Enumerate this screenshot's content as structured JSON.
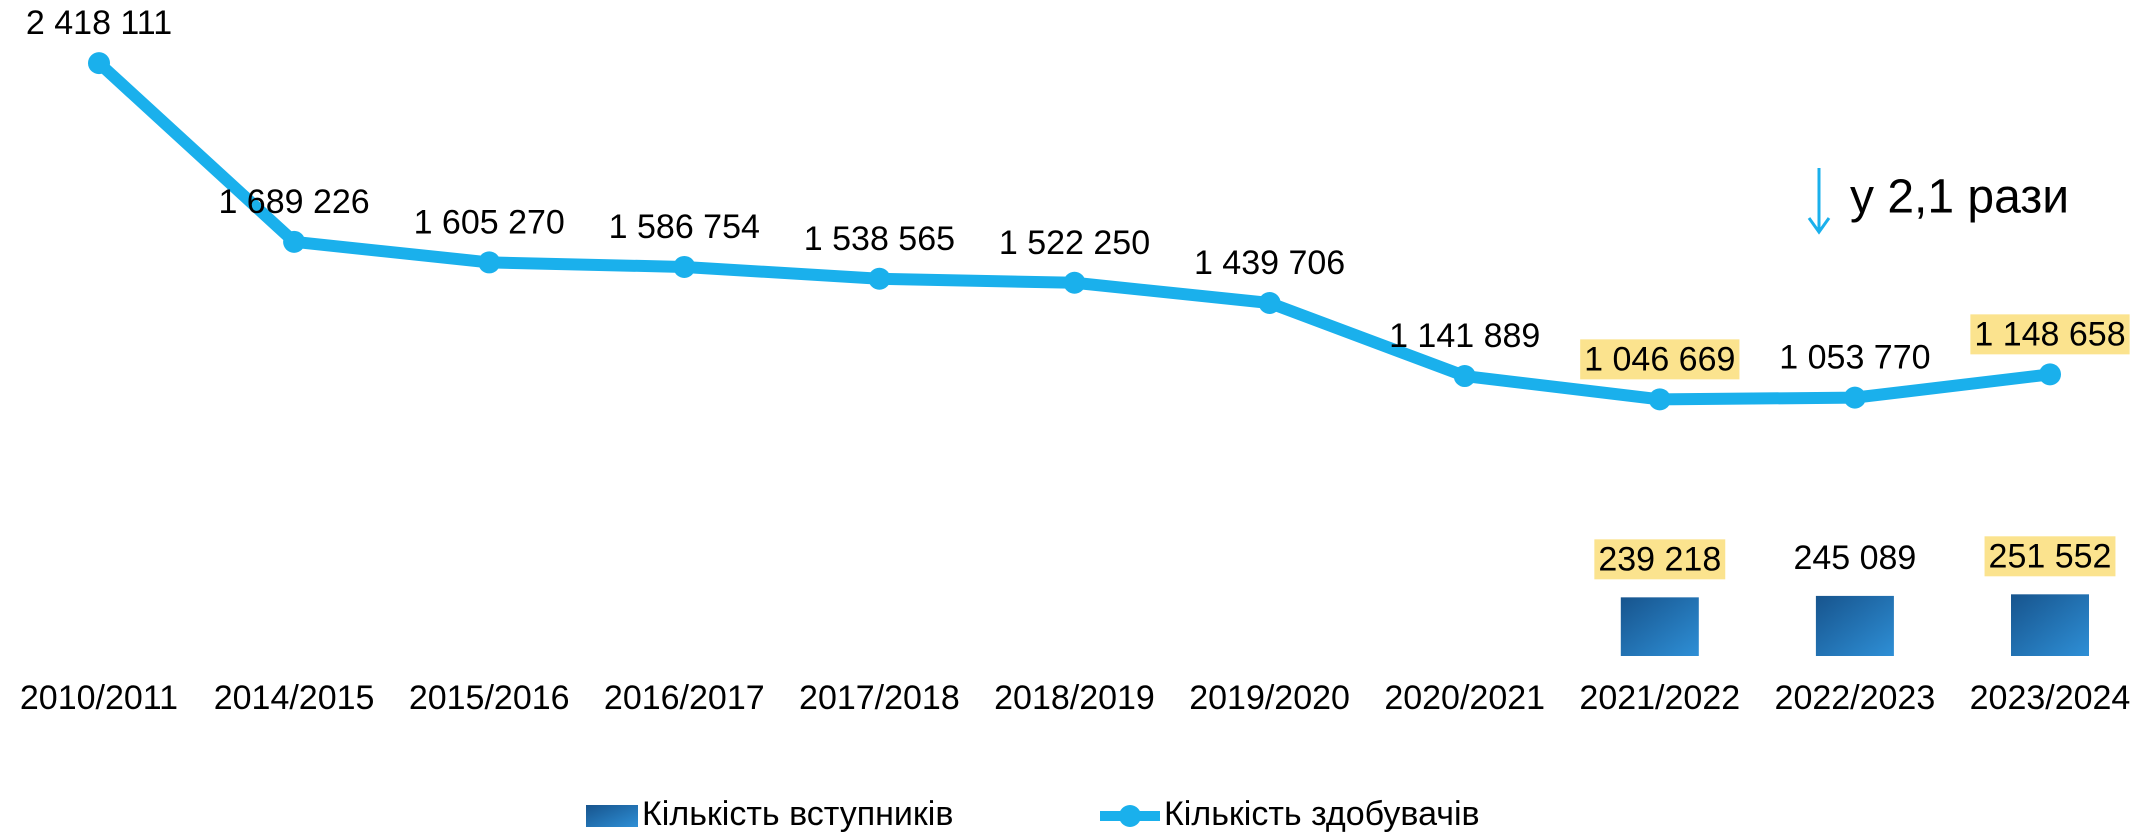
{
  "chart_data": {
    "type": "bar+line",
    "categories": [
      "2010/2011",
      "2014/2015",
      "2015/2016",
      "2016/2017",
      "2017/2018",
      "2018/2019",
      "2019/2020",
      "2020/2021",
      "2021/2022",
      "2022/2023",
      "2023/2024"
    ],
    "series": [
      {
        "name": "Кількість вступників",
        "type": "bar",
        "color": "#1f6aab",
        "values": [
          null,
          null,
          null,
          null,
          null,
          null,
          null,
          null,
          239218,
          245089,
          251552
        ],
        "value_labels": [
          null,
          null,
          null,
          null,
          null,
          null,
          null,
          null,
          "239 218",
          "245 089",
          "251 552"
        ],
        "highlight": [
          false,
          false,
          false,
          false,
          false,
          false,
          false,
          false,
          true,
          false,
          true
        ]
      },
      {
        "name": "Кількість здобувачів",
        "type": "line",
        "color": "#1ab0ec",
        "values": [
          2418111,
          1689226,
          1605270,
          1586754,
          1538565,
          1522250,
          1439706,
          1141889,
          1046669,
          1053770,
          1148658
        ],
        "value_labels": [
          "2 418 111",
          "1 689 226",
          "1 605 270",
          "1 586 754",
          "1 538 565",
          "1 522 250",
          "1 439 706",
          "1 141 889",
          "1 046 669",
          "1 053 770",
          "1 148 658"
        ],
        "highlight": [
          false,
          false,
          false,
          false,
          false,
          false,
          false,
          false,
          true,
          false,
          true
        ]
      }
    ],
    "highlight_color": "#fbe38e",
    "ylim": [
      0,
      2700000
    ],
    "annotation": "у 2,1 рази",
    "legend": "bottom"
  }
}
